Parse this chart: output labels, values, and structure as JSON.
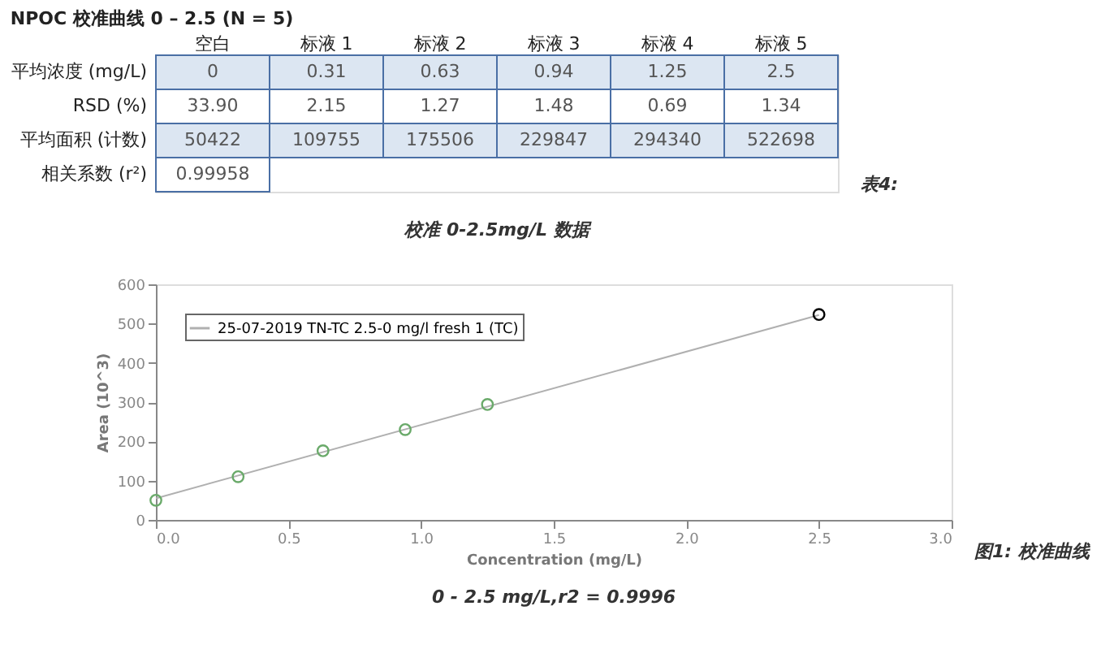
{
  "chart_data": [
    {
      "type": "heatmap",
      "title": "NPOC 校准曲线 0 – 2.5 (N = 5)",
      "categories": [
        "空白",
        "标液 1",
        "标液 2",
        "标液 3",
        "标液 4",
        "标液 5"
      ],
      "y_categories": [
        "平均浓度 (mg/L)",
        "RSD (%)",
        "平均面积 (计数)",
        "相关系数 (r²)"
      ],
      "cells": [
        [
          0,
          0.31,
          0.63,
          0.94,
          1.25,
          2.5
        ],
        [
          33.9,
          2.15,
          1.27,
          1.48,
          0.69,
          1.34
        ],
        [
          50422,
          109755,
          175506,
          229847,
          294340,
          522698
        ],
        [
          0.99958,
          null,
          null,
          null,
          null,
          null
        ]
      ],
      "cell_labels": [
        [
          "0",
          "0.31",
          "0.63",
          "0.94",
          "1.25",
          "2.5"
        ],
        [
          "33.90",
          "2.15",
          "1.27",
          "1.48",
          "0.69",
          "1.34"
        ],
        [
          "50422",
          "109755",
          "175506",
          "229847",
          "294340",
          "522698"
        ],
        [
          "0.99958",
          null,
          null,
          null,
          null,
          null
        ]
      ],
      "annotations": [
        "表4:",
        "校准 0-2.5mg/L 数据"
      ]
    },
    {
      "type": "scatter",
      "xlabel": "Concentration (mg/L)",
      "ylabel": "Area (10^3)",
      "xlim": [
        0,
        3
      ],
      "ylim": [
        0,
        600
      ],
      "xticks": [
        {
          "value": 0,
          "label": "0.0"
        },
        {
          "value": 0.5,
          "label": "0.5"
        },
        {
          "value": 1,
          "label": "1.0"
        },
        {
          "value": 1.5,
          "label": "1.5"
        },
        {
          "value": 2,
          "label": "2.0"
        },
        {
          "value": 2.5,
          "label": "2.5"
        },
        {
          "value": 3,
          "label": "3.0"
        }
      ],
      "yticks": [
        0,
        100,
        200,
        300,
        400,
        500,
        600
      ],
      "grid": false,
      "legend": "top left",
      "marker": "circle",
      "series": [
        {
          "type": "line",
          "name": "25-07-2019 TN-TC 2.5-0 mg/l fresh 1 (TC)",
          "color": "#b0b0b0",
          "marker": "none",
          "x": [
            0,
            2.5
          ],
          "values": [
            55,
            522
          ]
        },
        {
          "type": "scatter",
          "x": [
            0,
            0.31,
            0.63,
            0.94,
            1.25,
            2.5
          ],
          "values": [
            50,
            110,
            176,
            230,
            294,
            523
          ],
          "colors": [
            "#6aaa6a",
            "#6aaa6a",
            "#6aaa6a",
            "#6aaa6a",
            "#6aaa6a",
            "#000000"
          ]
        }
      ],
      "annotations": [
        "图1: 校准曲线",
        "0 - 2.5 mg/L,r2 = 0.9996"
      ]
    }
  ]
}
